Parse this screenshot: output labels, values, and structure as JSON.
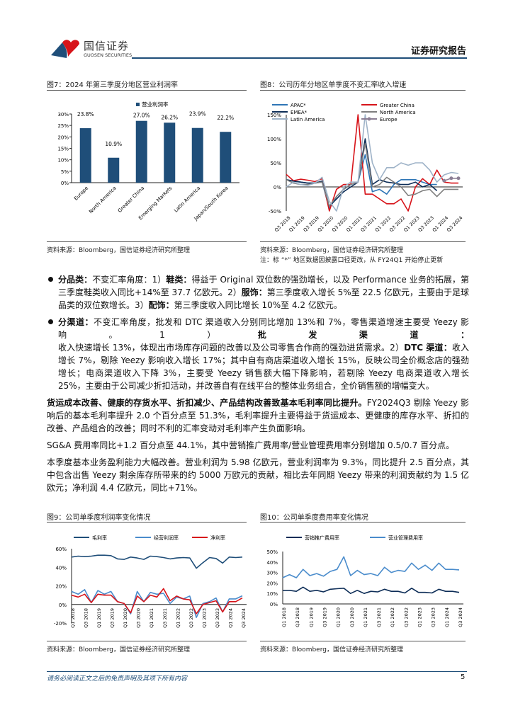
{
  "header": {
    "logo_cn": "国信证券",
    "logo_en": "GUOSEN SECURITIES",
    "report_type": "证券研究报告",
    "colors": {
      "brand_blue": "#1f4e79",
      "brand_red": "#d7141a"
    }
  },
  "fig7": {
    "title": "图7：2024 年第三季度分地区营业利润率",
    "source": "资料来源：Bloomberg，国信证券经济研究所整理"
  },
  "fig8": {
    "title": "图8：公司历年分地区单季度不变汇率收入增速",
    "source": "资料来源：Bloomberg，国信证券经济研究所整理",
    "note": "注：标 “*” 地区数据因披露口径更改，从 FY24Q1 开始停止更新"
  },
  "fig9": {
    "title": "图9：公司单季度利润率变化情况",
    "source": "资料来源：Bloomberg，国信证券经济研究所整理"
  },
  "fig10": {
    "title": "图10：公司单季度费用率变化情况",
    "source": "资料来源：Bloomberg，国信证券经济研究所整理"
  },
  "text": {
    "b1_head": "分品类：",
    "b1_a": "不变汇率角度：1）",
    "b1_k1": "鞋类：",
    "b1_b": "得益于 Original 双位数的强劲增长，以及 Performance 业务的拓展，第三季度鞋类收入同比+14%至 37.7 亿欧元。2）",
    "b1_k2": "服饰：",
    "b1_c": "第三季度收入增长 5%至 22.5 亿欧元，主要由于足球品类的双位数增长。3）",
    "b1_k3": "配饰：",
    "b1_d": "第三季度收入同比增长 10%至 4.2 亿欧元。",
    "b2_head": "分渠道：",
    "b2_a": "不变汇率角度，批发和 DTC 渠道收入分别同比增加 13%和 7%，零售渠道增速主要受 Yeezy 影响。1）",
    "b2_k1": "批发渠道：",
    "b2_b": "收入快速增长 13%，体现出市场库存问题的改善以及公司零售合作商的强劲进货需求。2）",
    "b2_k2": "DTC 渠道：",
    "b2_c": "收入增长 7%，剔除 Yeezy 影响收入增长 17%；其中自有商店渠道收入增长 15%，反映公司全价概念店的强劲增长；电商渠道收入下降 3%，主要受 Yeezy 销售额大幅下降影响，若剔除 Yeezy 电商渠道收入增长 25%，主要由于公司减少折扣活动，并改善自有在线平台的整体业务组合，全价销售额的增幅变大。",
    "p1_head": "货运成本改善、健康的存货水平、折扣减少、产品结构改善致基本毛利率同比提升。",
    "p1_body": "FY2024Q3 剔除 Yeezy 影响后的基本毛利率提升 2.0 个百分点至 51.3%，毛利率提升主要得益于货运成本、更健康的库存水平、折扣的改善、产品组合的改善；同时不利的汇率变动对毛利率产生负面影响。",
    "p2": "SG&A 费用率同比+1.2 百分点至 44.1%，其中营销推广费用率/营业管理费用率分别增加 0.5/0.7 百分点。",
    "p3": "本季度基本业务盈利能力大幅改善。营业利润为 5.98 亿欧元，营业利润率为 9.3%，同比提升 2.5 百分点，其中包含出售 Yeezy 剩余库存所带来的约 5000 万欧元的贡献，相比去年同期 Yeezy 带来的利润贡献约为 1.5 亿欧元；净利润 4.4 亿欧元，同比+71%。"
  },
  "footer": {
    "disclaimer": "请务必阅读正文之后的免责声明及其项下所有内容",
    "page": "5"
  },
  "chart_data": [
    {
      "type": "bar",
      "legend": [
        "营业利润率"
      ],
      "categories": [
        "Europe",
        "North America",
        "Greater China",
        "Emerging Markets",
        "Latin America",
        "Japan/South Korea"
      ],
      "values": [
        23.8,
        10.9,
        27.0,
        26.2,
        23.9,
        22.2
      ],
      "data_labels": [
        "23.8%",
        "10.9%",
        "27.0%",
        "26.2%",
        "23.9%",
        "22.2%"
      ],
      "ylim": [
        0,
        30
      ],
      "yticks": [
        "0%",
        "5%",
        "10%",
        "15%",
        "20%",
        "25%",
        "30%"
      ],
      "color": "#1f4e79"
    },
    {
      "type": "line",
      "ylim": [
        -50,
        150
      ],
      "yticks": [
        "-50%",
        "0%",
        "50%",
        "100%",
        "150%"
      ],
      "xticks": [
        "Q3 2018",
        "Q1 2019",
        "Q3 2019",
        "Q1 2020",
        "Q3 2020",
        "Q1 2021",
        "Q3 2021",
        "Q1 2022",
        "Q3 2022",
        "Q1 2023",
        "Q3 2023",
        "Q1 2024",
        "Q3 2024"
      ],
      "series": [
        {
          "name": "APAC*",
          "color": "#2e75b6",
          "values": [
            15,
            12,
            10,
            8,
            8,
            10,
            -45,
            -20,
            -5,
            5,
            10,
            67,
            -10,
            -5,
            -15,
            5,
            15,
            15,
            15,
            10,
            5,
            5
          ]
        },
        {
          "name": "Greater China",
          "color": "#d7141a",
          "values": [
            26,
            13,
            16,
            14,
            11,
            17,
            -55,
            -5,
            5,
            5,
            156,
            -15,
            -15,
            -25,
            -35,
            -35,
            -25,
            -50,
            0,
            17,
            5,
            35,
            10,
            8,
            8
          ]
        },
        {
          "name": "EMEA*",
          "color": "#0d2d57",
          "values": [
            15,
            12,
            10,
            8,
            8,
            12,
            -40,
            -25,
            -10,
            0,
            10,
            100,
            5,
            15,
            10,
            8,
            5,
            5,
            10,
            0,
            5,
            -8
          ]
        },
        {
          "name": "North America",
          "color": "#7f7f7f",
          "values": [
            15,
            8,
            5,
            5,
            8,
            10,
            -40,
            -20,
            -5,
            5,
            10,
            90,
            0,
            5,
            20,
            10,
            0,
            -18,
            -15,
            -8,
            -5,
            -20,
            -5,
            -5,
            -5
          ]
        },
        {
          "name": "Latin America",
          "color": "#9fb3c8",
          "values": [
            0,
            10,
            5,
            3,
            8,
            20,
            -30,
            -55,
            0,
            10,
            10,
            180,
            50,
            15,
            40,
            40,
            50,
            45,
            50,
            50,
            35,
            10,
            25,
            30,
            28
          ]
        },
        {
          "name": "Europe",
          "color": "#8c7f95",
          "marker": "circle",
          "values": [
            null,
            null,
            null,
            null,
            null,
            null,
            null,
            null,
            null,
            null,
            null,
            null,
            null,
            null,
            null,
            null,
            null,
            null,
            null,
            null,
            null,
            null,
            13,
            18,
            18
          ]
        }
      ]
    },
    {
      "type": "line",
      "ylim": [
        -20,
        60
      ],
      "yticks": [
        "-20%",
        "0%",
        "20%",
        "40%",
        "60%"
      ],
      "xticks": [
        "Q1 2018",
        "Q3 2018",
        "Q1 2019",
        "Q3 2019",
        "Q1 2020",
        "Q3 2020",
        "Q1 2021",
        "Q3 2021",
        "Q1 2022",
        "Q3 2022",
        "Q1 2023",
        "Q3 2023",
        "Q1 2024",
        "Q3 2024"
      ],
      "series": [
        {
          "name": "毛利率",
          "color": "#1f4e79",
          "values": [
            51,
            52,
            51.5,
            52,
            53,
            53,
            52.5,
            49,
            48.5,
            51,
            50,
            48.5,
            52,
            51.5,
            50.5,
            49,
            50,
            50.5,
            50,
            39,
            45,
            50.5,
            49.5,
            44.5,
            51,
            50.5,
            51
          ]
        },
        {
          "name": "经营利润率",
          "color": "#4a8ccc",
          "values": [
            14,
            11,
            16,
            2,
            15,
            11,
            14,
            3,
            1,
            -10,
            14,
            3,
            13,
            11,
            12,
            1,
            8,
            6,
            9,
            -14,
            1,
            3,
            7,
            -8,
            6,
            6,
            9.3
          ]
        },
        {
          "name": "净利率",
          "color": "#d7141a",
          "values": [
            10,
            8,
            11,
            2,
            11,
            10,
            10,
            3,
            1,
            -9,
            9,
            3,
            10,
            8,
            17,
            4,
            9,
            6,
            5,
            -10,
            0,
            2,
            4,
            -8,
            3,
            3,
            7
          ]
        }
      ]
    },
    {
      "type": "line",
      "ylim": [
        0,
        50
      ],
      "yticks": [
        "0%",
        "10%",
        "20%",
        "30%",
        "40%",
        "50%"
      ],
      "xticks": [
        "Q1 2018",
        "Q3 2018",
        "Q1 2019",
        "Q3 2019",
        "Q1 2020",
        "Q3 2020",
        "Q1 2021",
        "Q3 2021",
        "Q1 2022",
        "Q3 2022",
        "Q1 2023",
        "Q3 2023",
        "Q1 2024",
        "Q3 2024"
      ],
      "series": [
        {
          "name": "营销推广费用率",
          "color": "#0d2d57",
          "values": [
            13,
            13,
            12,
            16,
            12,
            13,
            11.5,
            14,
            14.5,
            15,
            10,
            13,
            10,
            12,
            11.5,
            14,
            12,
            12,
            10.5,
            15,
            11,
            11,
            10.5,
            14,
            12,
            12,
            11
          ]
        },
        {
          "name": "营业管理费用率",
          "color": "#4a8ccc",
          "values": [
            25,
            28,
            25,
            33,
            27,
            29,
            26.5,
            31,
            33,
            45,
            27,
            32,
            28,
            29,
            27,
            35,
            30,
            32,
            31,
            39,
            33,
            37,
            32,
            39,
            33,
            33,
            32.5
          ]
        }
      ]
    }
  ]
}
